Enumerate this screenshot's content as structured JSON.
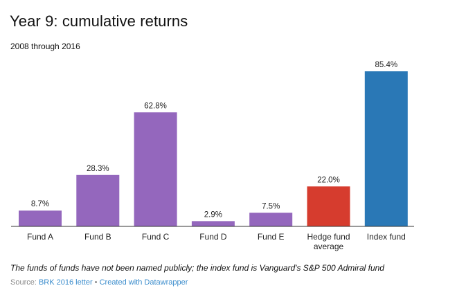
{
  "chart_data": {
    "type": "bar",
    "title": "Year 9: cumulative returns",
    "subtitle": "2008 through 2016",
    "categories": [
      "Fund A",
      "Fund B",
      "Fund C",
      "Fund D",
      "Fund E",
      "Hedge fund average",
      "Index fund"
    ],
    "category_lines": [
      [
        "Fund A"
      ],
      [
        "Fund B"
      ],
      [
        "Fund C"
      ],
      [
        "Fund D"
      ],
      [
        "Fund E"
      ],
      [
        "Hedge fund",
        "average"
      ],
      [
        "Index fund"
      ]
    ],
    "values": [
      8.7,
      28.3,
      62.8,
      2.9,
      7.5,
      22.0,
      85.4
    ],
    "value_labels": [
      "8.7%",
      "28.3%",
      "62.8%",
      "2.9%",
      "7.5%",
      "22.0%",
      "85.4%"
    ],
    "colors": [
      "#9467bd",
      "#9467bd",
      "#9467bd",
      "#9467bd",
      "#9467bd",
      "#d63c2e",
      "#2a78b6"
    ],
    "ylim": [
      0,
      85.4
    ],
    "grid": false,
    "legend": "none"
  },
  "footer": {
    "note": "The funds of funds have not been named publicly; the index fund is Vanguard's S&P 500 Admiral fund",
    "source_prefix": "Source: ",
    "source_name": "BRK 2016 letter",
    "separator": " • ",
    "credit": "Created with Datawrapper"
  }
}
